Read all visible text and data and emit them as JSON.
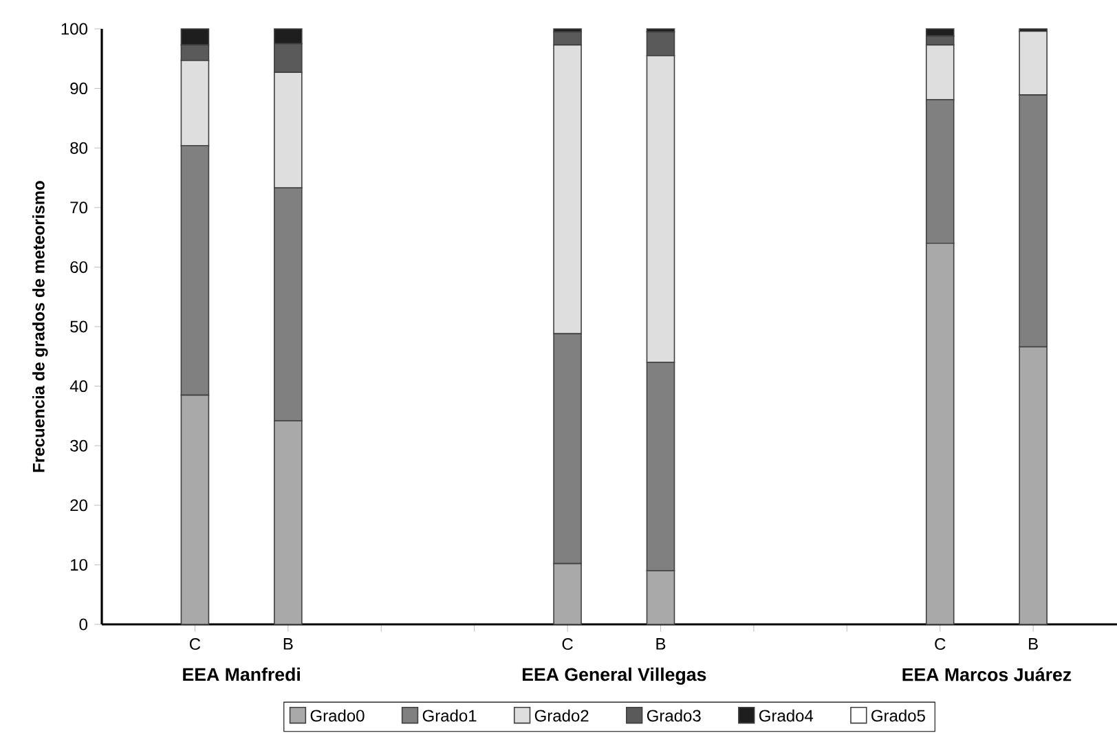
{
  "chart_data": {
    "type": "bar",
    "stacked": true,
    "ylabel": "Frecuencia de grados de meteorismo",
    "categories": [
      "C",
      "B",
      null,
      null,
      "C",
      "B",
      null,
      null,
      "C",
      "B"
    ],
    "series": [
      {
        "name": "Grado0",
        "color": "#a9a9a9",
        "values": [
          38.5,
          34.2,
          null,
          null,
          10.2,
          9,
          null,
          null,
          64,
          46.6
        ]
      },
      {
        "name": "Grado1",
        "color": "#808080",
        "values": [
          41.9,
          39.1,
          null,
          null,
          38.6,
          35,
          null,
          null,
          24.1,
          42.3
        ]
      },
      {
        "name": "Grado2",
        "color": "#dedede",
        "values": [
          14.3,
          19.4,
          null,
          null,
          48.5,
          51.5,
          null,
          null,
          9.2,
          10.7
        ]
      },
      {
        "name": "Grado3",
        "color": "#5a5a5a",
        "values": [
          2.6,
          4.8,
          null,
          null,
          2.2,
          4,
          null,
          null,
          1.5,
          0
        ]
      },
      {
        "name": "Grado4",
        "color": "#1e1e1e",
        "values": [
          2.7,
          2.5,
          null,
          null,
          0.5,
          0.5,
          null,
          null,
          1.2,
          0.4
        ]
      },
      {
        "name": "Grado5",
        "color": "#ffffff",
        "values": [
          0,
          0,
          null,
          null,
          0,
          0,
          null,
          null,
          0,
          0
        ]
      }
    ],
    "ylim": [
      0,
      100
    ],
    "yticks": [
      0,
      10,
      20,
      30,
      40,
      50,
      60,
      70,
      80,
      90,
      100
    ],
    "grid": false,
    "legend": "bottom",
    "annotations": [
      "EEA Manfredi",
      "EEA General Villegas",
      "EEA Marcos Juárez"
    ]
  }
}
